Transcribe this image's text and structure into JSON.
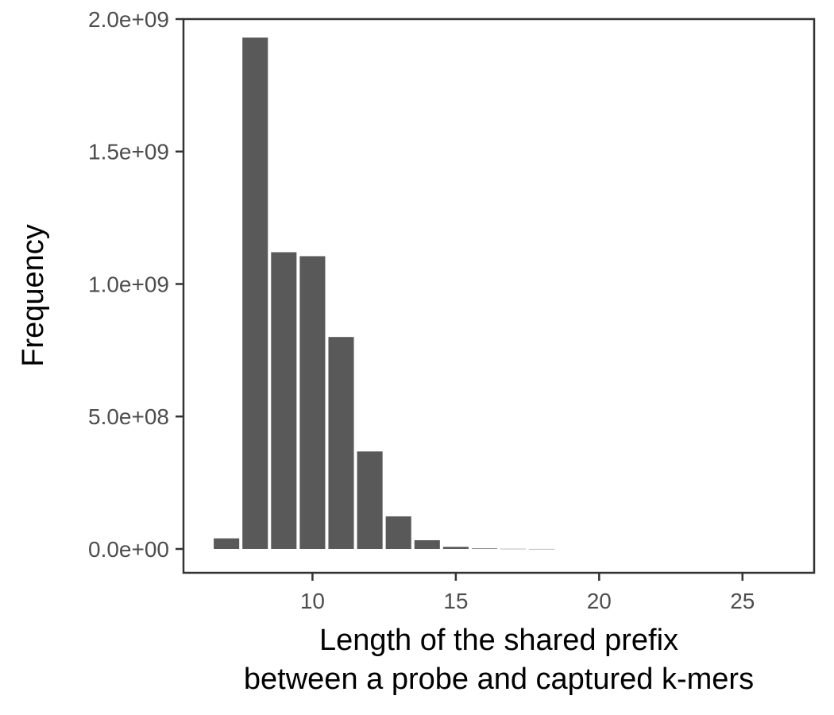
{
  "chart_data": {
    "type": "bar",
    "title": "",
    "xlabel": "Length of the shared prefix",
    "xlabel_line2": "between a probe and captured k-mers",
    "ylabel": "Frequency",
    "x": [
      7,
      8,
      9,
      10,
      11,
      12,
      13,
      14,
      15,
      16,
      17,
      18
    ],
    "values": [
      40000000,
      1930000000,
      1120000000,
      1105000000,
      800000000,
      368000000,
      123000000,
      33000000,
      8000000,
      2000000,
      500000,
      100000
    ],
    "xlim": [
      5.5,
      27.5
    ],
    "ylim": [
      -90000000,
      2000000000
    ],
    "xticks": [
      10,
      15,
      20,
      25
    ],
    "xtick_labels": [
      "10",
      "15",
      "20",
      "25"
    ],
    "yticks": [
      0,
      500000000,
      1000000000,
      1500000000,
      2000000000
    ],
    "ytick_labels": [
      "0.0e+00",
      "5.0e+08",
      "1.0e+09",
      "1.5e+09",
      "2.0e+09"
    ],
    "grid": false,
    "legend": "none",
    "colors": {
      "bar": "#595959",
      "frame": "#333333",
      "tick_text": "#4d4d4d",
      "axis_title": "#000000"
    }
  }
}
